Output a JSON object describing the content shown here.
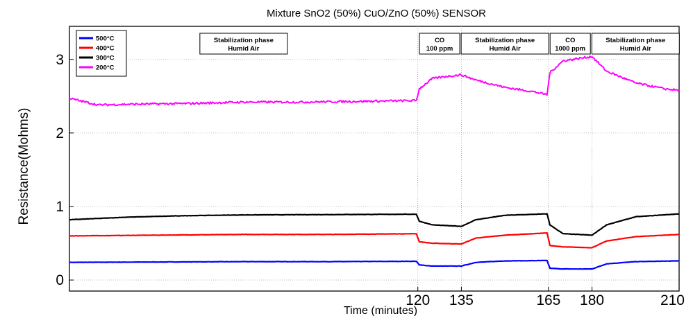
{
  "chart_data": {
    "type": "line",
    "title": "Mixture SnO2 (50%) CuO/ZnO (50%) SENSOR",
    "xlabel": "Time (minutes)",
    "ylabel": "Resistance(Mohms)",
    "xlim": [
      0,
      210
    ],
    "ylim": [
      -0.15,
      3.45
    ],
    "grid": true,
    "x_ticks": [
      120,
      135,
      165,
      180,
      210
    ],
    "y_ticks": [
      0,
      1,
      2,
      3
    ],
    "legend_position": "top-left",
    "phase_boundaries": [
      120,
      135,
      165,
      180
    ],
    "annotations": [
      {
        "lines": [
          "Stabilization phase",
          "Humid Air"
        ],
        "x": 60
      },
      {
        "lines": [
          "CO",
          "100 ppm"
        ],
        "x": 127.5
      },
      {
        "lines": [
          "Stabilization phase",
          "Humid Air"
        ],
        "x": 150
      },
      {
        "lines": [
          "CO",
          "1000 ppm"
        ],
        "x": 172.5
      },
      {
        "lines": [
          "Stabilization phase",
          "Humid Air"
        ],
        "x": 195
      }
    ],
    "series": [
      {
        "name": "500°C",
        "color": "#0000ff",
        "points": [
          [
            0,
            0.24
          ],
          [
            30,
            0.245
          ],
          [
            60,
            0.25
          ],
          [
            90,
            0.25
          ],
          [
            119.5,
            0.255
          ],
          [
            120.5,
            0.205
          ],
          [
            125,
            0.19
          ],
          [
            135,
            0.19
          ],
          [
            140,
            0.24
          ],
          [
            150,
            0.26
          ],
          [
            164.5,
            0.265
          ],
          [
            165.5,
            0.16
          ],
          [
            170,
            0.15
          ],
          [
            180,
            0.15
          ],
          [
            185,
            0.22
          ],
          [
            195,
            0.25
          ],
          [
            210,
            0.26
          ]
        ]
      },
      {
        "name": "400°C",
        "color": "#ff0000",
        "points": [
          [
            0,
            0.6
          ],
          [
            30,
            0.61
          ],
          [
            60,
            0.62
          ],
          [
            90,
            0.62
          ],
          [
            119.5,
            0.63
          ],
          [
            120.5,
            0.52
          ],
          [
            125,
            0.5
          ],
          [
            135,
            0.49
          ],
          [
            140,
            0.57
          ],
          [
            150,
            0.61
          ],
          [
            164.5,
            0.64
          ],
          [
            165.5,
            0.47
          ],
          [
            170,
            0.45
          ],
          [
            180,
            0.44
          ],
          [
            185,
            0.53
          ],
          [
            195,
            0.59
          ],
          [
            210,
            0.62
          ]
        ]
      },
      {
        "name": "300°C",
        "color": "#000000",
        "points": [
          [
            0,
            0.82
          ],
          [
            20,
            0.855
          ],
          [
            40,
            0.875
          ],
          [
            60,
            0.885
          ],
          [
            90,
            0.89
          ],
          [
            119.5,
            0.895
          ],
          [
            120.5,
            0.8
          ],
          [
            125,
            0.75
          ],
          [
            135,
            0.73
          ],
          [
            140,
            0.82
          ],
          [
            150,
            0.88
          ],
          [
            164.5,
            0.9
          ],
          [
            165.5,
            0.75
          ],
          [
            170,
            0.63
          ],
          [
            180,
            0.61
          ],
          [
            185,
            0.75
          ],
          [
            195,
            0.86
          ],
          [
            210,
            0.9
          ]
        ]
      },
      {
        "name": "200°C",
        "color": "#ff00ff",
        "points": [
          [
            0,
            2.47
          ],
          [
            10,
            2.38
          ],
          [
            20,
            2.39
          ],
          [
            40,
            2.4
          ],
          [
            60,
            2.42
          ],
          [
            80,
            2.42
          ],
          [
            100,
            2.43
          ],
          [
            119.5,
            2.44
          ],
          [
            120.5,
            2.6
          ],
          [
            125,
            2.74
          ],
          [
            130,
            2.77
          ],
          [
            135,
            2.79
          ],
          [
            140,
            2.72
          ],
          [
            150,
            2.62
          ],
          [
            160,
            2.56
          ],
          [
            164.5,
            2.52
          ],
          [
            165.5,
            2.82
          ],
          [
            170,
            2.98
          ],
          [
            180,
            3.04
          ],
          [
            185,
            2.84
          ],
          [
            195,
            2.68
          ],
          [
            205,
            2.6
          ],
          [
            210,
            2.58
          ]
        ]
      }
    ]
  }
}
